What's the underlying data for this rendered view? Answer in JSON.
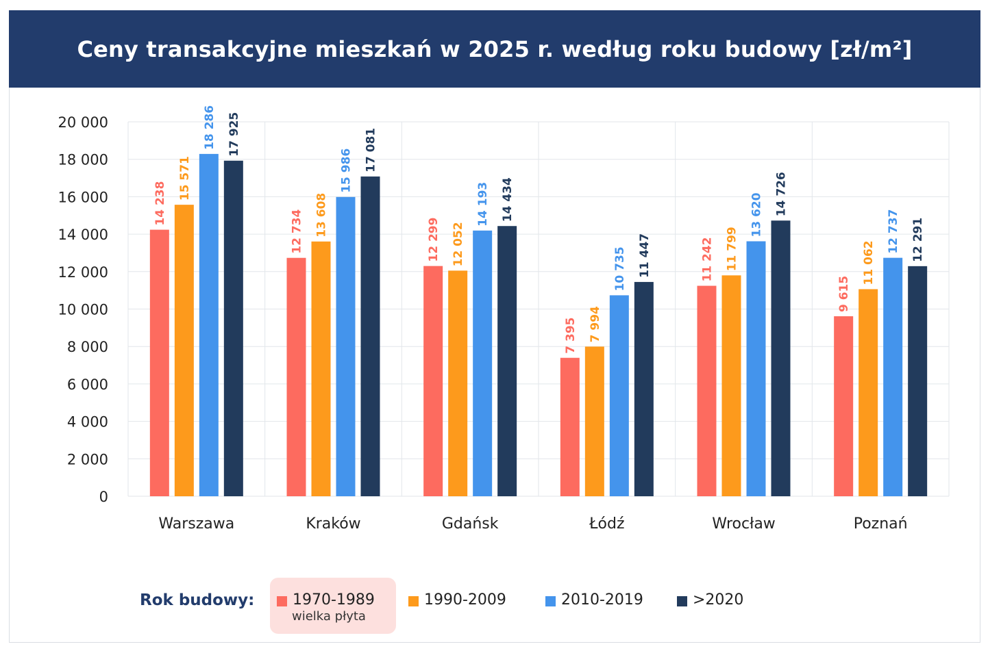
{
  "title": "Ceny transakcyjne mieszkań w 2025 r. według roku budowy [zł/m²]",
  "legend": {
    "title": "Rok budowy:",
    "items": [
      {
        "label": "1970-1989",
        "sublabel": "wielka płyta",
        "color": "#fd6b5f"
      },
      {
        "label": "1990-2009",
        "color": "#fd9a1c"
      },
      {
        "label": "2010-2019",
        "color": "#4494ec"
      },
      {
        "label": ">2020",
        "color": "#223b5c"
      }
    ]
  },
  "chart_data": {
    "type": "bar",
    "title": "Ceny transakcyjne mieszkań w 2025 r. według roku budowy [zł/m²]",
    "xlabel": "",
    "ylabel": "",
    "ylim": [
      0,
      20000
    ],
    "yticks": [
      0,
      2000,
      4000,
      6000,
      8000,
      10000,
      12000,
      14000,
      16000,
      18000,
      20000
    ],
    "ytick_labels": [
      "0",
      "2 000",
      "4 000",
      "6 000",
      "8 000",
      "10 000",
      "12 000",
      "14 000",
      "16 000",
      "18 000",
      "20 000"
    ],
    "grid": true,
    "legend_position": "bottom",
    "categories": [
      "Warszawa",
      "Kraków",
      "Gdańsk",
      "Łódź",
      "Wrocław",
      "Poznań"
    ],
    "series": [
      {
        "name": "1970-1989",
        "color": "#fd6b5f",
        "values": [
          14238,
          12734,
          12299,
          7395,
          11242,
          9615
        ],
        "labels": [
          "14 238",
          "12 734",
          "12 299",
          "7 395",
          "11 242",
          "9 615"
        ]
      },
      {
        "name": "1990-2009",
        "color": "#fd9a1c",
        "values": [
          15571,
          13608,
          12052,
          7994,
          11799,
          11062
        ],
        "labels": [
          "15 571",
          "13 608",
          "12 052",
          "7 994",
          "11 799",
          "11 062"
        ]
      },
      {
        "name": "2010-2019",
        "color": "#4494ec",
        "values": [
          18286,
          15986,
          14193,
          10735,
          13620,
          12737
        ],
        "labels": [
          "18 286",
          "15 986",
          "14 193",
          "10 735",
          "13 620",
          "12 737"
        ]
      },
      {
        "name": ">2020",
        "color": "#223b5c",
        "values": [
          17925,
          17081,
          14434,
          11447,
          14726,
          12291
        ],
        "labels": [
          "17 925",
          "17 081",
          "14 434",
          "11 447",
          "14 726",
          "12 291"
        ]
      }
    ]
  }
}
